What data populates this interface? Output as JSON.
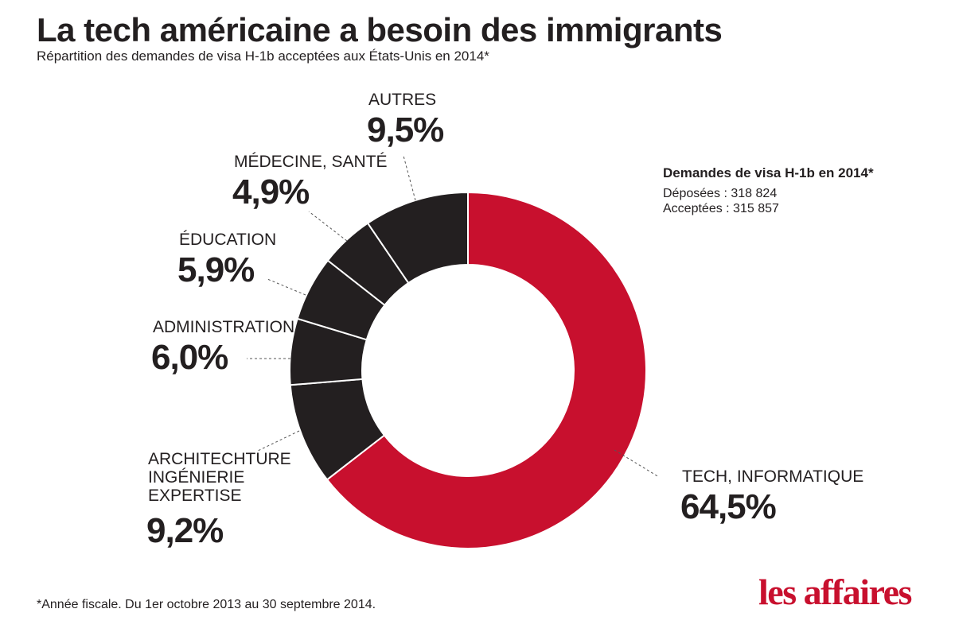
{
  "header": {
    "title": "La tech américaine a besoin des immigrants",
    "subtitle": "Répartition des demandes de visa H-1b acceptées aux États-Unis en 2014*"
  },
  "info_box": {
    "title": "Demandes de visa H-1b en 2014*",
    "line1": "Déposées : 318 824",
    "line2": "Acceptées : 315 857"
  },
  "footnote": "*Année fiscale. Du 1er octobre 2013 au 30 septembre 2014.",
  "logo": "les affaires",
  "colors": {
    "highlight": "#c8102e",
    "dark": "#231f20",
    "separator": "#ffffff"
  },
  "chart_data": {
    "type": "pie",
    "donut": true,
    "title": "La tech américaine a besoin des immigrants",
    "subtitle": "Répartition des demandes de visa H-1b acceptées aux États-Unis en 2014*",
    "slices": [
      {
        "label_lines": [
          "TECH, INFORMATIQUE"
        ],
        "value": 64.5,
        "value_label": "64,5%",
        "color": "#c8102e"
      },
      {
        "label_lines": [
          "ARCHITECHTURE",
          "INGÉNIERIE",
          "EXPERTISE"
        ],
        "value": 9.2,
        "value_label": "9,2%",
        "color": "#231f20"
      },
      {
        "label_lines": [
          "ADMINISTRATION"
        ],
        "value": 6.0,
        "value_label": "6,0%",
        "color": "#231f20"
      },
      {
        "label_lines": [
          "ÉDUCATION"
        ],
        "value": 5.9,
        "value_label": "5,9%",
        "color": "#231f20"
      },
      {
        "label_lines": [
          "MÉDECINE, SANTÉ"
        ],
        "value": 4.9,
        "value_label": "4,9%",
        "color": "#231f20"
      },
      {
        "label_lines": [
          "AUTRES"
        ],
        "value": 9.5,
        "value_label": "9,5%",
        "color": "#231f20"
      }
    ]
  }
}
